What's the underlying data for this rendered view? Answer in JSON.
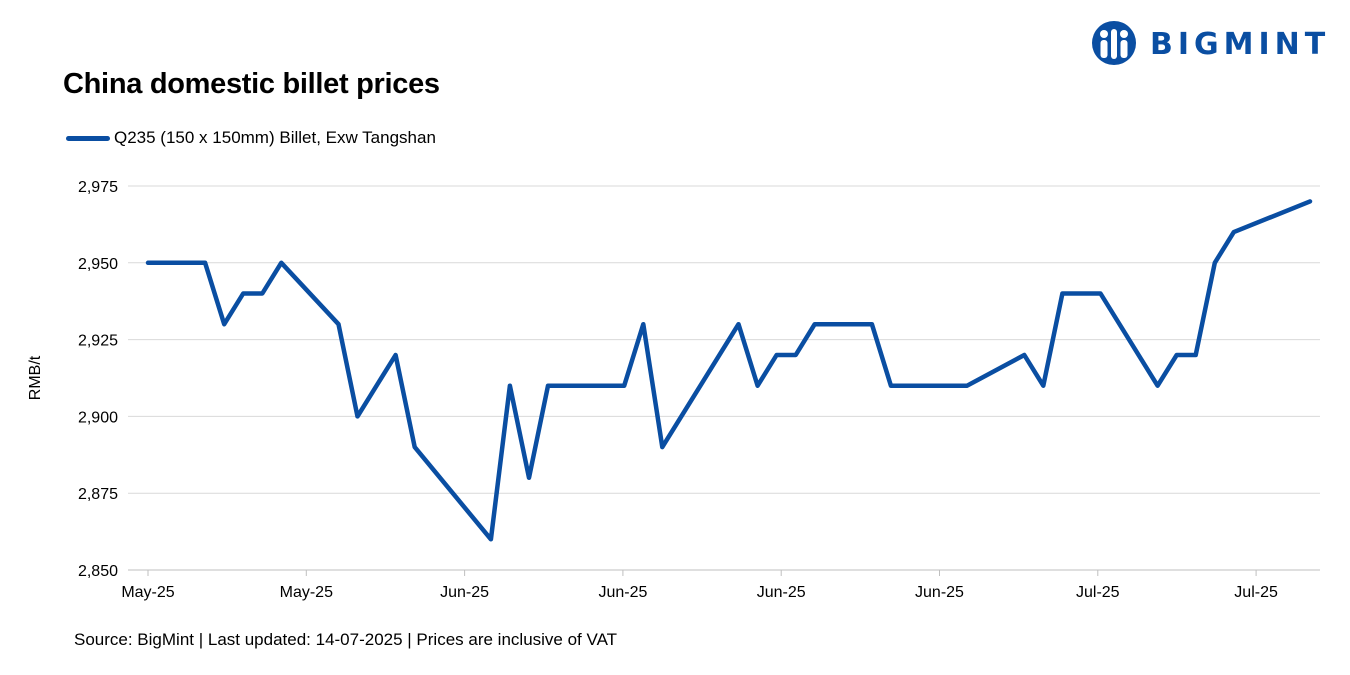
{
  "brand": {
    "name": "BIGMINT",
    "color": "#0a4ea2"
  },
  "source_text": "Source: BigMint | Last updated: 14-07-2025 | Prices are inclusive of VAT",
  "chart_data": {
    "type": "line",
    "title": "China domestic billet prices",
    "xlabel": "",
    "ylabel": "RMB/t",
    "ylim": [
      2850,
      2975
    ],
    "yticks": [
      2850,
      2875,
      2900,
      2925,
      2950,
      2975
    ],
    "grid": true,
    "legend_position": "top-left",
    "x_tick_labels": [
      "May-25",
      "May-25",
      "Jun-25",
      "Jun-25",
      "Jun-25",
      "Jun-25",
      "Jul-25",
      "Jul-25"
    ],
    "series": [
      {
        "name": "Q235 (150 x 150mm) Billet, Exw Tangshan",
        "color": "#0a4ea2",
        "values": [
          2950,
          2950,
          2950,
          2950,
          2930,
          2940,
          2940,
          2950,
          2930,
          2900,
          2920,
          2890,
          2860,
          2910,
          2880,
          2910,
          2910,
          2910,
          2910,
          2930,
          2890,
          2930,
          2910,
          2920,
          2920,
          2930,
          2930,
          2930,
          2930,
          2910,
          2910,
          2910,
          2920,
          2910,
          2940,
          2940,
          2940,
          2910,
          2920,
          2920,
          2950,
          2960,
          2970
        ]
      }
    ],
    "point_positions": [
      0,
      1,
      2,
      3,
      4,
      5,
      6,
      7,
      10,
      11,
      13,
      14,
      18,
      19,
      20,
      21,
      22,
      23,
      25,
      26,
      27,
      31,
      32,
      33,
      34,
      35,
      36,
      37,
      38,
      39,
      40,
      43,
      46,
      47,
      48,
      49,
      50,
      53,
      54,
      55,
      56,
      57,
      61
    ]
  }
}
